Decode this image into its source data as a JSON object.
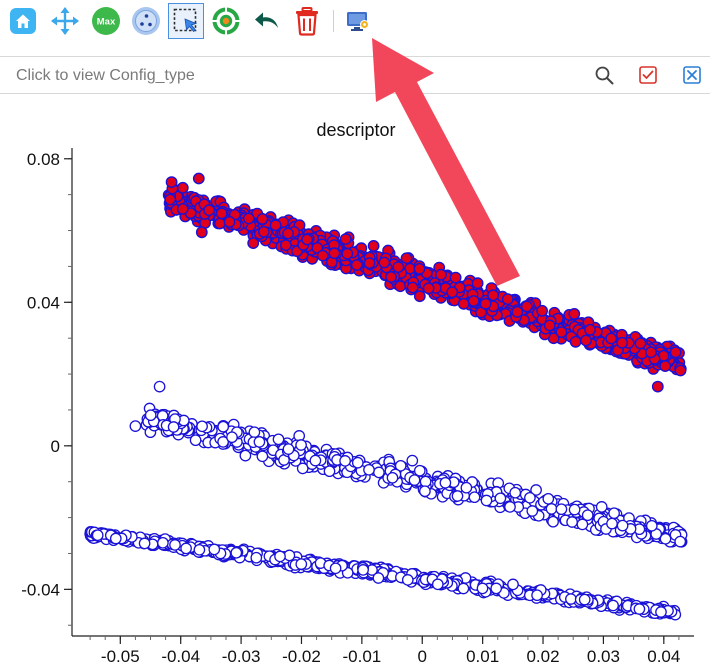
{
  "toolbar": {
    "buttons": [
      {
        "name": "home-button",
        "icon": "home-icon"
      },
      {
        "name": "pan-button",
        "icon": "move-arrows-icon"
      },
      {
        "name": "max-button",
        "icon": "max-icon",
        "label": "Max"
      },
      {
        "name": "scatter-button",
        "icon": "scatter-dots-icon"
      },
      {
        "name": "box-select-button",
        "icon": "box-select-icon",
        "selected": true
      },
      {
        "name": "target-button",
        "icon": "target-icon"
      },
      {
        "name": "undo-button",
        "icon": "undo-arrow-icon"
      },
      {
        "name": "delete-button",
        "icon": "trash-icon"
      },
      {
        "name": "display-settings-button",
        "icon": "monitor-settings-icon"
      }
    ]
  },
  "search": {
    "placeholder": "Click to view Config_type",
    "value": ""
  },
  "colors": {
    "selected_fill": "#e0001b",
    "marker_edge": "#1a12d6",
    "unselected_fill": "#ffffff",
    "annotation_arrow": "#f2475b",
    "accent": "#4a90e2"
  },
  "chart_data": {
    "type": "scatter",
    "title": "descriptor",
    "xlabel": "",
    "ylabel": "",
    "xlim": [
      -0.058,
      0.045
    ],
    "ylim": [
      -0.053,
      0.083
    ],
    "x_ticks": [
      "-0.05",
      "-0.04",
      "-0.03",
      "-0.02",
      "-0.01",
      "0",
      "0.01",
      "0.02",
      "0.03",
      "0.04"
    ],
    "x_tick_values": [
      -0.05,
      -0.04,
      -0.03,
      -0.02,
      -0.01,
      0,
      0.01,
      0.02,
      0.03,
      0.04
    ],
    "y_ticks": [
      "0.08",
      "0.04",
      "0",
      "-0.04"
    ],
    "y_tick_values": [
      0.08,
      0.04,
      0,
      -0.04
    ],
    "grid": false,
    "series": [
      {
        "style": "selected",
        "x_range": [
          -0.042,
          0.043
        ],
        "y_at_start": 0.069,
        "y_at_end": 0.023,
        "spread": 0.0065,
        "count": 900,
        "outliers": [
          [
            -0.0415,
            0.0735
          ],
          [
            -0.037,
            0.0745
          ],
          [
            -0.0365,
            0.0595
          ],
          [
            0.039,
            0.0165
          ],
          [
            -0.028,
            0.0565
          ]
        ]
      },
      {
        "style": "unselected",
        "x_range": [
          -0.046,
          0.043
        ],
        "y_at_start": 0.0075,
        "y_at_end": -0.0255,
        "spread": 0.0055,
        "count": 700,
        "outliers": [
          [
            -0.0435,
            0.0165
          ],
          [
            -0.0475,
            0.0055
          ]
        ]
      },
      {
        "style": "unselected",
        "x_range": [
          -0.055,
          0.042
        ],
        "y_at_start": -0.0245,
        "y_at_end": -0.0465,
        "spread": 0.0022,
        "count": 650,
        "outliers": []
      }
    ]
  }
}
